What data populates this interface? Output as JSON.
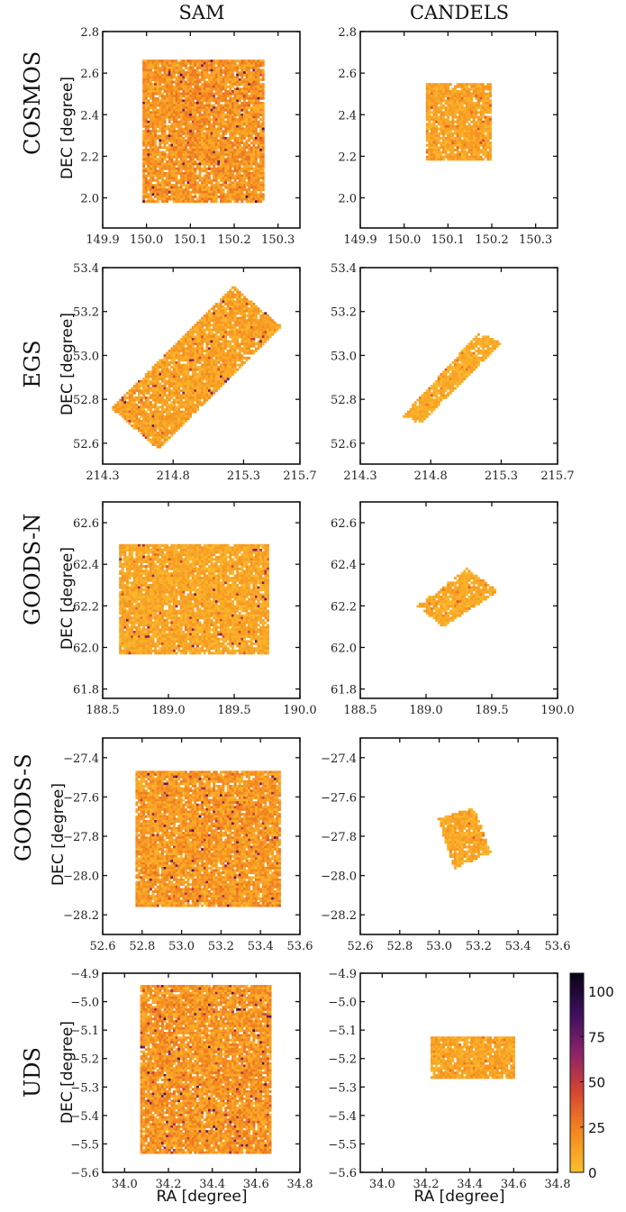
{
  "column_titles": [
    "SAM",
    "CANDELS"
  ],
  "row_labels": [
    "COSMOS",
    "EGS",
    "GOODS-N",
    "GOODS-S",
    "UDS"
  ],
  "ylabel": "DEC [degree]",
  "xlabel": "RA [degree]",
  "colors": {
    "cmap": "inferno_r",
    "stops": [
      "#fbc02d",
      "#f58a1f",
      "#d9462f",
      "#8c2369",
      "#3d0f5e",
      "#0a0418"
    ]
  },
  "colorbar": {
    "range": [
      0,
      110
    ],
    "ticks": [
      0,
      25,
      50,
      75,
      100
    ],
    "tick_labels": [
      "0",
      "25",
      "50",
      "75",
      "100"
    ]
  },
  "chart_data": [
    {
      "type": "heatmap",
      "field": "COSMOS",
      "source": "SAM",
      "xlim": [
        149.9,
        150.35
      ],
      "ylim": [
        1.855,
        2.8
      ],
      "xticks": [
        149.9,
        150.0,
        150.1,
        150.2,
        150.3
      ],
      "xtick_labels": [
        "149.9",
        "150.0",
        "150.1",
        "150.2",
        "150.3"
      ],
      "yticks": [
        2.0,
        2.2,
        2.4,
        2.6,
        2.8
      ],
      "ytick_labels": [
        "2.0",
        "2.2",
        "2.4",
        "2.6",
        "2.8"
      ],
      "footprint": [
        [
          149.99,
          1.98
        ],
        [
          150.27,
          1.98
        ],
        [
          150.27,
          2.665
        ],
        [
          149.99,
          2.665
        ]
      ],
      "typical_count": [
        5,
        30
      ]
    },
    {
      "type": "heatmap",
      "field": "COSMOS",
      "source": "CANDELS",
      "xlim": [
        149.9,
        150.35
      ],
      "ylim": [
        1.855,
        2.8
      ],
      "xticks": [
        149.9,
        150.0,
        150.1,
        150.2,
        150.3
      ],
      "xtick_labels": [
        "149.9",
        "150.0",
        "150.1",
        "150.2",
        "150.3"
      ],
      "yticks": [
        2.0,
        2.2,
        2.4,
        2.6,
        2.8
      ],
      "ytick_labels": [
        "2.0",
        "2.2",
        "2.4",
        "2.6",
        "2.8"
      ],
      "footprint": [
        [
          150.05,
          2.18
        ],
        [
          150.2,
          2.18
        ],
        [
          150.2,
          2.55
        ],
        [
          150.05,
          2.55
        ]
      ],
      "typical_count": [
        3,
        20
      ]
    },
    {
      "type": "heatmap",
      "field": "EGS",
      "source": "SAM",
      "xlim": [
        214.3,
        215.7
      ],
      "ylim": [
        52.505,
        53.4
      ],
      "xticks": [
        214.3,
        214.8,
        215.3,
        215.7
      ],
      "xtick_labels": [
        "214.3",
        "214.8",
        "215.3",
        "215.7"
      ],
      "yticks": [
        52.6,
        52.8,
        53.0,
        53.2,
        53.4
      ],
      "ytick_labels": [
        "52.6",
        "52.8",
        "53.0",
        "53.2",
        "53.4"
      ],
      "footprint": [
        [
          214.356,
          52.762
        ],
        [
          214.695,
          52.573
        ],
        [
          215.571,
          53.131
        ],
        [
          215.227,
          53.316
        ]
      ],
      "typical_count": [
        3,
        22
      ]
    },
    {
      "type": "heatmap",
      "field": "EGS",
      "source": "CANDELS",
      "xlim": [
        214.3,
        215.7
      ],
      "ylim": [
        52.505,
        53.4
      ],
      "xticks": [
        214.3,
        214.8,
        215.3,
        215.7
      ],
      "xtick_labels": [
        "214.3",
        "214.8",
        "215.3",
        "215.7"
      ],
      "yticks": [
        52.6,
        52.8,
        53.0,
        53.2,
        53.4
      ],
      "ytick_labels": [
        "52.6",
        "52.8",
        "53.0",
        "53.2",
        "53.4"
      ],
      "footprint": [
        [
          214.594,
          52.72
        ],
        [
          214.73,
          52.69
        ],
        [
          215.3,
          53.06
        ],
        [
          215.139,
          53.105
        ]
      ],
      "typical_count": [
        2,
        14
      ]
    },
    {
      "type": "heatmap",
      "field": "GOODS-N",
      "source": "SAM",
      "xlim": [
        188.5,
        190.0
      ],
      "ylim": [
        61.755,
        62.7
      ],
      "xticks": [
        188.5,
        189.0,
        189.5,
        190.0
      ],
      "xtick_labels": [
        "188.5",
        "189.0",
        "189.5",
        "190.0"
      ],
      "yticks": [
        61.8,
        62.0,
        62.2,
        62.4,
        62.6
      ],
      "ytick_labels": [
        "61.8",
        "62.0",
        "62.2",
        "62.4",
        "62.6"
      ],
      "footprint": [
        [
          188.62,
          61.97
        ],
        [
          189.77,
          61.97
        ],
        [
          189.77,
          62.5
        ],
        [
          188.62,
          62.5
        ]
      ],
      "typical_count": [
        2,
        18
      ]
    },
    {
      "type": "heatmap",
      "field": "GOODS-N",
      "source": "CANDELS",
      "xlim": [
        188.5,
        190.0
      ],
      "ylim": [
        61.755,
        62.7
      ],
      "xticks": [
        188.5,
        189.0,
        189.5,
        190.0
      ],
      "xtick_labels": [
        "188.5",
        "189.0",
        "189.5",
        "190.0"
      ],
      "yticks": [
        61.8,
        62.0,
        62.2,
        62.4,
        62.6
      ],
      "ytick_labels": [
        "61.8",
        "62.0",
        "62.2",
        "62.4",
        "62.6"
      ],
      "footprint": [
        [
          188.93,
          62.2
        ],
        [
          189.13,
          62.1
        ],
        [
          189.55,
          62.27
        ],
        [
          189.31,
          62.38
        ]
      ],
      "typical_count": [
        2,
        16
      ]
    },
    {
      "type": "heatmap",
      "field": "GOODS-S",
      "source": "SAM",
      "xlim": [
        52.6,
        53.6
      ],
      "ylim": [
        -28.3,
        -27.3
      ],
      "xticks": [
        52.6,
        52.8,
        53.0,
        53.2,
        53.4,
        53.6
      ],
      "xtick_labels": [
        "52.6",
        "52.8",
        "53.0",
        "53.2",
        "53.4",
        "53.6"
      ],
      "yticks": [
        -28.2,
        -28.0,
        -27.8,
        -27.6,
        -27.4
      ],
      "ytick_labels": [
        "−28.2",
        "−28.0",
        "−27.8",
        "−27.6",
        "−27.4"
      ],
      "footprint": [
        [
          52.77,
          -28.16
        ],
        [
          53.5,
          -28.16
        ],
        [
          53.5,
          -27.47
        ],
        [
          52.77,
          -27.47
        ]
      ],
      "typical_count": [
        4,
        28
      ]
    },
    {
      "type": "heatmap",
      "field": "GOODS-S",
      "source": "CANDELS",
      "xlim": [
        52.6,
        53.6
      ],
      "ylim": [
        -28.3,
        -27.3
      ],
      "xticks": [
        52.6,
        52.8,
        53.0,
        53.2,
        53.4,
        53.6
      ],
      "xtick_labels": [
        "52.6",
        "52.8",
        "53.0",
        "53.2",
        "53.4",
        "53.6"
      ],
      "yticks": [
        -28.2,
        -28.0,
        -27.8,
        -27.6,
        -27.4
      ],
      "ytick_labels": [
        "−28.2",
        "−28.0",
        "−27.8",
        "−27.6",
        "−27.4"
      ],
      "footprint": [
        [
          52.99,
          -27.707
        ],
        [
          53.077,
          -27.966
        ],
        [
          53.262,
          -27.884
        ],
        [
          53.178,
          -27.653
        ]
      ],
      "typical_count": [
        2,
        18
      ]
    },
    {
      "type": "heatmap",
      "field": "UDS",
      "source": "SAM",
      "xlim": [
        33.9,
        34.8
      ],
      "ylim": [
        -5.6,
        -4.9
      ],
      "xticks": [
        34.0,
        34.2,
        34.4,
        34.6,
        34.8
      ],
      "xtick_labels": [
        "34.0",
        "34.2",
        "34.4",
        "34.6",
        "34.8"
      ],
      "yticks": [
        -5.6,
        -5.5,
        -5.4,
        -5.3,
        -5.2,
        -5.1,
        -5.0,
        -4.9
      ],
      "ytick_labels": [
        "−5.6",
        "−5.5",
        "−5.4",
        "−5.3",
        "−5.2",
        "−5.1",
        "−5.0",
        "−4.9"
      ],
      "footprint": [
        [
          34.07,
          -5.53
        ],
        [
          34.67,
          -5.53
        ],
        [
          34.67,
          -4.94
        ],
        [
          34.07,
          -4.94
        ]
      ],
      "typical_count": [
        4,
        30
      ]
    },
    {
      "type": "heatmap",
      "field": "UDS",
      "source": "CANDELS",
      "xlim": [
        33.9,
        34.8
      ],
      "ylim": [
        -5.6,
        -4.9
      ],
      "xticks": [
        34.0,
        34.2,
        34.4,
        34.6,
        34.8
      ],
      "xtick_labels": [
        "34.0",
        "34.2",
        "34.4",
        "34.6",
        "34.8"
      ],
      "yticks": [
        -5.6,
        -5.5,
        -5.4,
        -5.3,
        -5.2,
        -5.1,
        -5.0,
        -4.9
      ],
      "ytick_labels": [
        "−5.6",
        "−5.5",
        "−5.4",
        "−5.3",
        "−5.2",
        "−5.1",
        "−5.0",
        "−4.9"
      ],
      "footprint": [
        [
          34.22,
          -5.27
        ],
        [
          34.6,
          -5.27
        ],
        [
          34.6,
          -5.12
        ],
        [
          34.22,
          -5.12
        ]
      ],
      "typical_count": [
        2,
        20
      ]
    }
  ]
}
